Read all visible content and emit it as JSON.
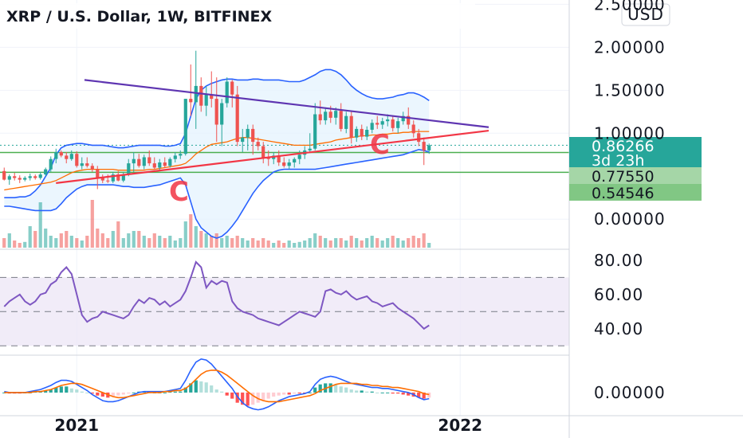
{
  "chart_title": "XRP / U.S. Dollar, 1W, BITFINEX",
  "currency_button": "USD",
  "price_tags": {
    "last_price": "0.86266",
    "countdown": "3d 23h",
    "level_1": "0.77550",
    "level_2": "0.54546"
  },
  "annotations": {
    "pattern_left": "C",
    "pattern_right": "C"
  },
  "colors": {
    "up": "#26a69a",
    "down": "#ef5350",
    "bb_band": "#2962ff",
    "bb_fill": "#e3f2fd",
    "ma": "#ff6d00",
    "resistance": "#5e35b1",
    "support": "#f23645",
    "level_line": "#4caf50",
    "rsi": "#7e57c2",
    "rsi_band": "#ede7f6",
    "macd": "#2962ff",
    "signal": "#ff6d00"
  },
  "chart_data": [
    {
      "type": "candlestick",
      "title": "XRP / U.S. Dollar, 1W, BITFINEX",
      "y_tick_labels": [
        "2.50000",
        "2.00000",
        "1.50000",
        "1.00000",
        "0.00000"
      ],
      "y_ticks": [
        2.5,
        2.0,
        1.5,
        1.0,
        0.0
      ],
      "x_tick_labels": [
        "2021",
        "2022"
      ],
      "ylim": [
        -0.35,
        2.55
      ],
      "candles": [
        [
          0.56,
          0.6,
          0.45,
          0.46
        ],
        [
          0.46,
          0.52,
          0.4,
          0.5
        ],
        [
          0.5,
          0.54,
          0.45,
          0.48
        ],
        [
          0.48,
          0.51,
          0.42,
          0.46
        ],
        [
          0.46,
          0.5,
          0.44,
          0.48
        ],
        [
          0.48,
          0.53,
          0.45,
          0.5
        ],
        [
          0.5,
          0.52,
          0.46,
          0.48
        ],
        [
          0.48,
          0.55,
          0.46,
          0.52
        ],
        [
          0.52,
          0.6,
          0.5,
          0.58
        ],
        [
          0.58,
          0.73,
          0.55,
          0.7
        ],
        [
          0.7,
          0.82,
          0.65,
          0.78
        ],
        [
          0.78,
          0.8,
          0.72,
          0.74
        ],
        [
          0.74,
          0.78,
          0.65,
          0.7
        ],
        [
          0.7,
          0.8,
          0.68,
          0.76
        ],
        [
          0.76,
          0.79,
          0.6,
          0.62
        ],
        [
          0.62,
          0.72,
          0.58,
          0.65
        ],
        [
          0.65,
          0.72,
          0.6,
          0.62
        ],
        [
          0.62,
          0.65,
          0.55,
          0.58
        ],
        [
          0.58,
          0.62,
          0.35,
          0.48
        ],
        [
          0.48,
          0.52,
          0.42,
          0.45
        ],
        [
          0.45,
          0.52,
          0.42,
          0.44
        ],
        [
          0.44,
          0.55,
          0.42,
          0.52
        ],
        [
          0.52,
          0.56,
          0.44,
          0.45
        ],
        [
          0.45,
          0.55,
          0.43,
          0.52
        ],
        [
          0.52,
          0.7,
          0.5,
          0.65
        ],
        [
          0.65,
          0.78,
          0.55,
          0.7
        ],
        [
          0.7,
          0.76,
          0.6,
          0.62
        ],
        [
          0.62,
          0.75,
          0.58,
          0.72
        ],
        [
          0.72,
          0.8,
          0.62,
          0.65
        ],
        [
          0.65,
          0.72,
          0.58,
          0.6
        ],
        [
          0.6,
          0.7,
          0.56,
          0.66
        ],
        [
          0.66,
          0.72,
          0.6,
          0.62
        ],
        [
          0.62,
          0.72,
          0.6,
          0.7
        ],
        [
          0.7,
          0.78,
          0.66,
          0.74
        ],
        [
          0.74,
          0.8,
          0.7,
          0.76
        ],
        [
          0.76,
          1.4,
          0.74,
          1.4
        ],
        [
          1.4,
          1.8,
          1.2,
          1.36
        ],
        [
          1.36,
          1.96,
          1.05,
          1.55
        ],
        [
          1.55,
          1.65,
          1.25,
          1.32
        ],
        [
          1.32,
          1.55,
          1.2,
          1.45
        ],
        [
          1.45,
          1.72,
          1.3,
          1.4
        ],
        [
          1.4,
          1.65,
          0.9,
          1.1
        ],
        [
          1.1,
          1.4,
          0.85,
          1.35
        ],
        [
          1.35,
          1.65,
          1.3,
          1.6
        ],
        [
          1.6,
          1.62,
          1.3,
          1.45
        ],
        [
          1.45,
          1.55,
          0.85,
          0.9
        ],
        [
          0.9,
          1.05,
          0.78,
          0.95
        ],
        [
          0.95,
          1.1,
          0.8,
          1.05
        ],
        [
          1.05,
          1.1,
          0.75,
          0.9
        ],
        [
          0.9,
          0.95,
          0.8,
          0.85
        ],
        [
          0.85,
          0.9,
          0.65,
          0.72
        ],
        [
          0.72,
          0.8,
          0.62,
          0.7
        ],
        [
          0.7,
          0.78,
          0.64,
          0.74
        ],
        [
          0.74,
          0.8,
          0.62,
          0.66
        ],
        [
          0.66,
          0.72,
          0.6,
          0.62
        ],
        [
          0.62,
          0.7,
          0.58,
          0.66
        ],
        [
          0.66,
          0.72,
          0.6,
          0.7
        ],
        [
          0.7,
          0.8,
          0.64,
          0.75
        ],
        [
          0.75,
          0.85,
          0.7,
          0.8
        ],
        [
          0.8,
          1.0,
          0.78,
          0.82
        ],
        [
          0.82,
          1.35,
          0.8,
          1.22
        ],
        [
          1.22,
          1.38,
          1.1,
          1.15
        ],
        [
          1.15,
          1.3,
          1.1,
          1.25
        ],
        [
          1.25,
          1.32,
          1.12,
          1.18
        ],
        [
          1.18,
          1.3,
          1.1,
          1.26
        ],
        [
          1.26,
          1.35,
          1.02,
          1.05
        ],
        [
          1.05,
          1.25,
          1.0,
          1.2
        ],
        [
          1.2,
          1.25,
          0.88,
          0.95
        ],
        [
          0.95,
          1.08,
          0.9,
          1.05
        ],
        [
          1.05,
          1.1,
          0.92,
          0.96
        ],
        [
          0.96,
          1.08,
          0.92,
          1.04
        ],
        [
          1.04,
          1.16,
          1.0,
          1.12
        ],
        [
          1.12,
          1.2,
          1.05,
          1.1
        ],
        [
          1.1,
          1.18,
          1.05,
          1.14
        ],
        [
          1.14,
          1.22,
          1.08,
          1.16
        ],
        [
          1.16,
          1.2,
          1.02,
          1.06
        ],
        [
          1.06,
          1.18,
          1.0,
          1.14
        ],
        [
          1.14,
          1.25,
          1.1,
          1.2
        ],
        [
          1.2,
          1.3,
          1.05,
          1.1
        ],
        [
          1.1,
          1.15,
          0.95,
          1.0
        ],
        [
          1.0,
          1.05,
          0.85,
          0.9
        ],
        [
          0.9,
          0.95,
          0.63,
          0.8
        ],
        [
          0.8,
          0.88,
          0.76,
          0.86
        ]
      ],
      "volume": [
        0.2,
        0.3,
        0.15,
        0.1,
        0.12,
        0.45,
        0.35,
        0.95,
        0.4,
        0.25,
        0.2,
        0.3,
        0.35,
        0.25,
        0.2,
        0.15,
        0.25,
        1.0,
        0.4,
        0.3,
        0.2,
        0.35,
        0.55,
        0.2,
        0.3,
        0.35,
        0.35,
        0.25,
        0.2,
        0.3,
        0.25,
        0.2,
        0.25,
        0.15,
        0.2,
        0.55,
        0.7,
        0.45,
        0.35,
        0.3,
        0.25,
        0.3,
        0.2,
        0.25,
        0.2,
        0.25,
        0.2,
        0.15,
        0.2,
        0.15,
        0.2,
        0.15,
        0.1,
        0.15,
        0.1,
        0.15,
        0.1,
        0.12,
        0.15,
        0.2,
        0.3,
        0.25,
        0.2,
        0.15,
        0.2,
        0.2,
        0.15,
        0.25,
        0.2,
        0.15,
        0.2,
        0.25,
        0.2,
        0.15,
        0.2,
        0.25,
        0.2,
        0.15,
        0.2,
        0.25,
        0.2,
        0.3,
        0.1
      ],
      "bollinger_upper": [
        0.25,
        0.25,
        0.25,
        0.26,
        0.26,
        0.28,
        0.33,
        0.4,
        0.5,
        0.6,
        0.75,
        0.83,
        0.86,
        0.87,
        0.88,
        0.88,
        0.87,
        0.86,
        0.86,
        0.86,
        0.85,
        0.84,
        0.83,
        0.83,
        0.84,
        0.85,
        0.86,
        0.86,
        0.86,
        0.86,
        0.86,
        0.85,
        0.85,
        0.86,
        0.88,
        1.0,
        1.2,
        1.4,
        1.5,
        1.55,
        1.58,
        1.6,
        1.62,
        1.63,
        1.63,
        1.62,
        1.62,
        1.62,
        1.63,
        1.63,
        1.62,
        1.62,
        1.62,
        1.62,
        1.61,
        1.6,
        1.6,
        1.6,
        1.62,
        1.65,
        1.68,
        1.72,
        1.74,
        1.74,
        1.72,
        1.68,
        1.62,
        1.55,
        1.5,
        1.46,
        1.43,
        1.41,
        1.4,
        1.4,
        1.41,
        1.42,
        1.44,
        1.45,
        1.47,
        1.47,
        1.45,
        1.42,
        1.38
      ],
      "bollinger_lower": [
        0.15,
        0.15,
        0.14,
        0.13,
        0.12,
        0.11,
        0.1,
        0.1,
        0.1,
        0.1,
        0.12,
        0.18,
        0.25,
        0.3,
        0.35,
        0.38,
        0.4,
        0.4,
        0.4,
        0.4,
        0.4,
        0.4,
        0.39,
        0.38,
        0.38,
        0.37,
        0.37,
        0.37,
        0.38,
        0.39,
        0.4,
        0.42,
        0.44,
        0.46,
        0.48,
        0.4,
        0.2,
        0.0,
        -0.1,
        -0.15,
        -0.2,
        -0.22,
        -0.2,
        -0.15,
        -0.08,
        0.0,
        0.1,
        0.2,
        0.3,
        0.38,
        0.45,
        0.5,
        0.55,
        0.57,
        0.58,
        0.58,
        0.58,
        0.58,
        0.58,
        0.58,
        0.58,
        0.59,
        0.6,
        0.61,
        0.62,
        0.63,
        0.64,
        0.65,
        0.66,
        0.67,
        0.68,
        0.69,
        0.7,
        0.71,
        0.72,
        0.73,
        0.74,
        0.75,
        0.77,
        0.79,
        0.81,
        0.8,
        0.78
      ],
      "moving_average": [
        0.34,
        0.35,
        0.36,
        0.37,
        0.38,
        0.39,
        0.4,
        0.41,
        0.42,
        0.43,
        0.45,
        0.48,
        0.51,
        0.54,
        0.56,
        0.57,
        0.58,
        0.58,
        0.58,
        0.58,
        0.58,
        0.58,
        0.57,
        0.57,
        0.57,
        0.57,
        0.57,
        0.57,
        0.58,
        0.58,
        0.59,
        0.6,
        0.61,
        0.62,
        0.63,
        0.65,
        0.7,
        0.76,
        0.8,
        0.84,
        0.87,
        0.88,
        0.89,
        0.9,
        0.92,
        0.94,
        0.95,
        0.95,
        0.94,
        0.93,
        0.92,
        0.91,
        0.9,
        0.89,
        0.88,
        0.87,
        0.86,
        0.86,
        0.86,
        0.86,
        0.87,
        0.88,
        0.89,
        0.9,
        0.92,
        0.93,
        0.94,
        0.95,
        0.96,
        0.97,
        0.97,
        0.98,
        0.98,
        0.99,
        0.99,
        1.0,
        1.0,
        1.01,
        1.01,
        1.02,
        1.02,
        1.02,
        1.02
      ],
      "trend_lines": [
        {
          "from": [
            15.5,
            1.62
          ],
          "to": [
            93.5,
            1.07
          ]
        },
        {
          "from": [
            10,
            0.42
          ],
          "to": [
            93.5,
            1.03
          ]
        }
      ],
      "horizontal_levels": [
        0.7755,
        0.54546
      ]
    },
    {
      "type": "line",
      "title": "",
      "y_tick_labels": [
        "80.00",
        "60.00",
        "40.00"
      ],
      "y_ticks": [
        80,
        60,
        40
      ],
      "ylim": [
        25,
        86
      ],
      "band": [
        30,
        70
      ],
      "midline": 50,
      "series": [
        {
          "values": [
            53,
            56,
            58,
            60,
            56,
            54,
            56,
            60,
            61,
            66,
            68,
            73,
            76,
            72,
            60,
            48,
            44,
            46,
            47,
            50,
            49,
            48,
            47,
            46,
            48,
            53,
            57,
            55,
            58,
            57,
            54,
            56,
            53,
            55,
            57,
            62,
            70,
            79,
            76,
            64,
            68,
            66,
            68,
            67,
            56,
            52,
            50,
            49,
            48,
            46,
            45,
            44,
            43,
            42,
            44,
            46,
            48,
            50,
            49,
            48,
            47,
            50,
            62,
            63,
            61,
            60,
            62,
            59,
            57,
            58,
            59,
            56,
            55,
            53,
            54,
            55,
            52,
            50,
            48,
            46,
            43,
            40,
            42
          ]
        }
      ]
    },
    {
      "type": "bar+line",
      "title": "",
      "y_tick_labels": [
        "0.00000"
      ],
      "y_ticks": [
        0
      ],
      "ylim": [
        -0.22,
        0.36
      ],
      "histogram": [
        0.0,
        -0.01,
        -0.01,
        -0.01,
        0.0,
        0.0,
        0.01,
        0.01,
        0.02,
        0.03,
        0.05,
        0.06,
        0.06,
        0.04,
        0.03,
        0.01,
        0.0,
        -0.01,
        -0.03,
        -0.04,
        -0.05,
        -0.04,
        -0.03,
        -0.02,
        -0.01,
        0.0,
        0.01,
        0.01,
        0.0,
        0.0,
        0.0,
        0.0,
        0.01,
        0.01,
        0.01,
        0.05,
        0.09,
        0.12,
        0.11,
        0.1,
        0.07,
        0.03,
        0.01,
        -0.03,
        -0.06,
        -0.1,
        -0.12,
        -0.13,
        -0.12,
        -0.1,
        -0.08,
        -0.06,
        -0.04,
        -0.03,
        -0.02,
        -0.02,
        -0.01,
        -0.01,
        -0.01,
        0.0,
        0.05,
        0.08,
        0.09,
        0.09,
        0.08,
        0.06,
        0.05,
        0.03,
        0.02,
        0.02,
        0.01,
        0.01,
        0.0,
        0.0,
        0.0,
        -0.01,
        -0.01,
        -0.02,
        -0.03,
        -0.04,
        -0.05,
        -0.06,
        -0.05
      ],
      "macd_line": [
        0.01,
        0.0,
        0.0,
        0.0,
        0.0,
        0.01,
        0.02,
        0.03,
        0.05,
        0.07,
        0.1,
        0.12,
        0.12,
        0.11,
        0.08,
        0.05,
        0.02,
        -0.02,
        -0.05,
        -0.08,
        -0.09,
        -0.09,
        -0.08,
        -0.06,
        -0.04,
        -0.02,
        0.0,
        0.01,
        0.01,
        0.01,
        0.01,
        0.01,
        0.02,
        0.03,
        0.04,
        0.12,
        0.22,
        0.3,
        0.33,
        0.32,
        0.28,
        0.22,
        0.16,
        0.1,
        0.04,
        -0.04,
        -0.1,
        -0.14,
        -0.16,
        -0.17,
        -0.16,
        -0.14,
        -0.11,
        -0.08,
        -0.06,
        -0.04,
        -0.03,
        -0.02,
        -0.01,
        0.01,
        0.08,
        0.13,
        0.15,
        0.16,
        0.15,
        0.13,
        0.11,
        0.09,
        0.08,
        0.07,
        0.06,
        0.05,
        0.05,
        0.04,
        0.04,
        0.03,
        0.02,
        0.01,
        0.0,
        -0.02,
        -0.05,
        -0.07,
        -0.06
      ],
      "signal_line": [
        0.0,
        0.0,
        0.0,
        0.0,
        0.0,
        0.0,
        0.01,
        0.01,
        0.02,
        0.03,
        0.05,
        0.07,
        0.08,
        0.09,
        0.09,
        0.08,
        0.06,
        0.04,
        0.02,
        0.0,
        -0.02,
        -0.04,
        -0.05,
        -0.05,
        -0.04,
        -0.03,
        -0.02,
        -0.01,
        0.0,
        0.0,
        0.0,
        0.01,
        0.01,
        0.02,
        0.02,
        0.04,
        0.08,
        0.13,
        0.18,
        0.21,
        0.22,
        0.22,
        0.2,
        0.17,
        0.13,
        0.09,
        0.05,
        0.01,
        -0.03,
        -0.06,
        -0.08,
        -0.09,
        -0.09,
        -0.09,
        -0.08,
        -0.07,
        -0.06,
        -0.05,
        -0.04,
        -0.03,
        -0.01,
        0.02,
        0.04,
        0.06,
        0.08,
        0.09,
        0.09,
        0.09,
        0.09,
        0.08,
        0.08,
        0.07,
        0.07,
        0.06,
        0.06,
        0.05,
        0.05,
        0.04,
        0.03,
        0.02,
        0.01,
        -0.01,
        -0.02
      ]
    }
  ]
}
